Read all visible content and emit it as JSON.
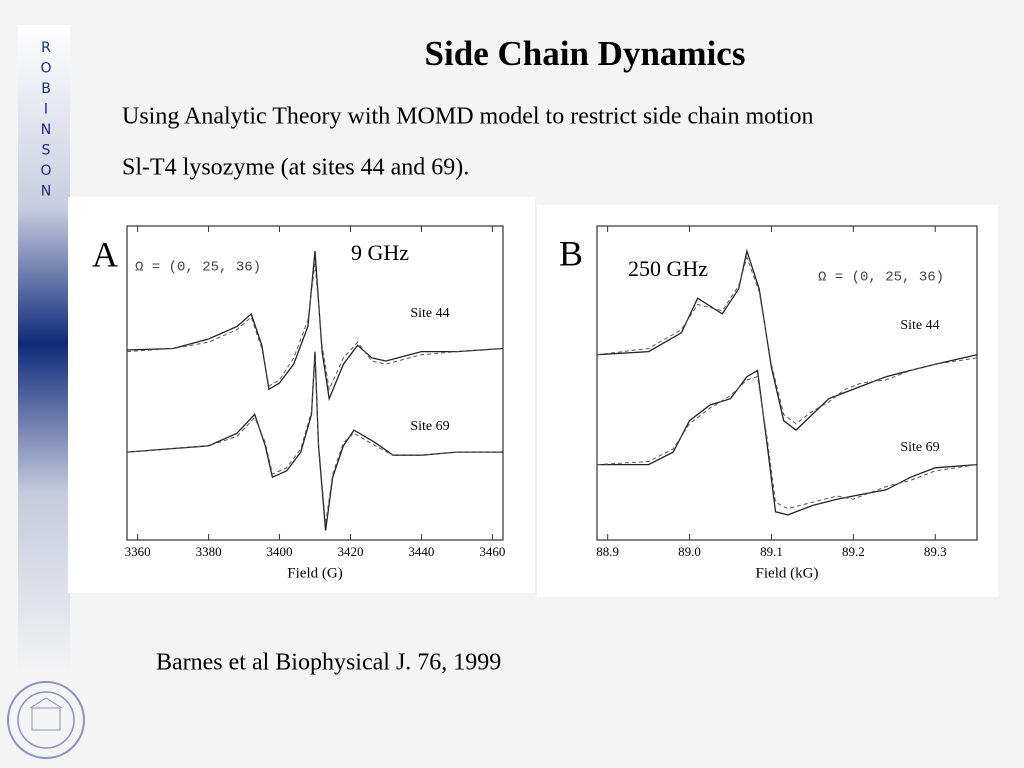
{
  "slide": {
    "side_letters": [
      "R",
      "O",
      "B",
      "I",
      "N",
      "S",
      "O",
      "N"
    ],
    "title": "Side Chain Dynamics",
    "lines": [
      "Using Analytic Theory with MOMD model to restrict side chain motion",
      "Sl-T4 lysozyme (at sites 44 and 69)."
    ],
    "citation": "Barnes et al Biophysical J.  76, 1999"
  },
  "chart_data": [
    {
      "type": "line",
      "panel_label": "A",
      "frequency": "9 GHz",
      "model": "Ω = (0, 25, 36)",
      "site_labels": [
        "Site 44",
        "Site 69"
      ],
      "x_label": "Field (G)",
      "xlim": [
        3357,
        3463
      ],
      "xticks": [
        3360,
        3380,
        3400,
        3420,
        3440,
        3460
      ],
      "ylim": [
        0,
        100
      ],
      "series": [
        {
          "color": "#222222",
          "dashed": false,
          "x": [
            3357,
            3370,
            3380,
            3388,
            3392,
            3395,
            3397,
            3400,
            3404,
            3408,
            3410,
            3412,
            3414,
            3418,
            3422,
            3426,
            3430,
            3440,
            3450,
            3463
          ],
          "values": [
            60.5,
            61,
            64,
            68,
            72,
            62,
            48,
            50,
            56,
            68,
            92,
            60,
            45,
            56,
            62,
            58,
            57,
            60,
            60,
            61
          ]
        },
        {
          "color": "#555555",
          "dashed": true,
          "x": [
            3357,
            3370,
            3380,
            3388,
            3392,
            3395,
            3397,
            3400,
            3404,
            3408,
            3410,
            3412,
            3414,
            3418,
            3422,
            3426,
            3430,
            3440,
            3450,
            3463
          ],
          "values": [
            60,
            61,
            63,
            67,
            71,
            61,
            49,
            51,
            58,
            70,
            88,
            62,
            48,
            58,
            63,
            57,
            56,
            59,
            60,
            61
          ]
        },
        {
          "color": "#222222",
          "dashed": false,
          "x": [
            3357,
            3380,
            3388,
            3393,
            3396,
            3398,
            3402,
            3406,
            3409,
            3410,
            3411,
            3413,
            3415,
            3418,
            3421,
            3427,
            3432,
            3440,
            3450,
            3463
          ],
          "values": [
            28,
            30,
            34,
            40,
            30,
            20,
            22,
            28,
            40,
            60,
            30,
            3,
            20,
            30,
            35,
            31,
            27,
            27,
            28,
            28
          ]
        },
        {
          "color": "#555555",
          "dashed": true,
          "x": [
            3357,
            3380,
            3388,
            3393,
            3396,
            3398,
            3402,
            3406,
            3409,
            3410,
            3411,
            3413,
            3415,
            3418,
            3421,
            3427,
            3432,
            3440,
            3450,
            3463
          ],
          "values": [
            28,
            30,
            33,
            39,
            31,
            21,
            23,
            29,
            41,
            58,
            31,
            5,
            21,
            31,
            34,
            30,
            27,
            27,
            28,
            28
          ]
        }
      ]
    },
    {
      "type": "line",
      "panel_label": "B",
      "frequency": "250 GHz",
      "model": "Ω = (0, 25, 36)",
      "site_labels": [
        "Site 44",
        "Site 69"
      ],
      "x_label": "Field (kG)",
      "xlim": [
        88.887,
        89.351
      ],
      "xticks": [
        88.9,
        {
          "value": 89,
          "label": "89.0"
        },
        89.1,
        89.2,
        89.3
      ],
      "ylim": [
        0,
        100
      ],
      "series": [
        {
          "color": "#222222",
          "dashed": false,
          "x": [
            88.887,
            88.95,
            88.99,
            89.01,
            89.04,
            89.06,
            89.07,
            89.085,
            89.1,
            89.115,
            89.13,
            89.15,
            89.17,
            89.19,
            89.21,
            89.24,
            89.27,
            89.3,
            89.351
          ],
          "values": [
            59,
            60,
            66,
            77,
            72,
            80,
            92,
            80,
            55,
            38,
            35,
            40,
            45,
            47,
            49,
            52,
            54,
            56,
            59
          ]
        },
        {
          "color": "#555555",
          "dashed": true,
          "x": [
            88.887,
            88.95,
            88.99,
            89.01,
            89.04,
            89.06,
            89.07,
            89.085,
            89.1,
            89.115,
            89.13,
            89.15,
            89.17,
            89.19,
            89.21,
            89.24,
            89.27,
            89.3,
            89.351
          ],
          "values": [
            59,
            61,
            67,
            75,
            73,
            81,
            90,
            79,
            56,
            40,
            37,
            41,
            44,
            48,
            50,
            51,
            54,
            56,
            58
          ]
        },
        {
          "color": "#222222",
          "dashed": false,
          "x": [
            88.887,
            88.95,
            88.98,
            89.0,
            89.025,
            89.05,
            89.07,
            89.083,
            89.095,
            89.105,
            89.12,
            89.15,
            89.18,
            89.2,
            89.24,
            89.27,
            89.3,
            89.351
          ],
          "values": [
            24,
            24,
            28,
            38,
            43,
            45,
            52,
            54,
            30,
            9,
            8,
            11,
            13,
            14,
            16,
            20,
            23,
            24
          ]
        },
        {
          "color": "#555555",
          "dashed": true,
          "x": [
            88.887,
            88.95,
            88.98,
            89.0,
            89.025,
            89.05,
            89.07,
            89.083,
            89.095,
            89.105,
            89.12,
            89.15,
            89.18,
            89.2,
            89.24,
            89.27,
            89.3,
            89.351
          ],
          "values": [
            24,
            25,
            29,
            37,
            42,
            46,
            51,
            52,
            32,
            12,
            10,
            12,
            14,
            13,
            17,
            19,
            22,
            24
          ]
        }
      ]
    }
  ]
}
